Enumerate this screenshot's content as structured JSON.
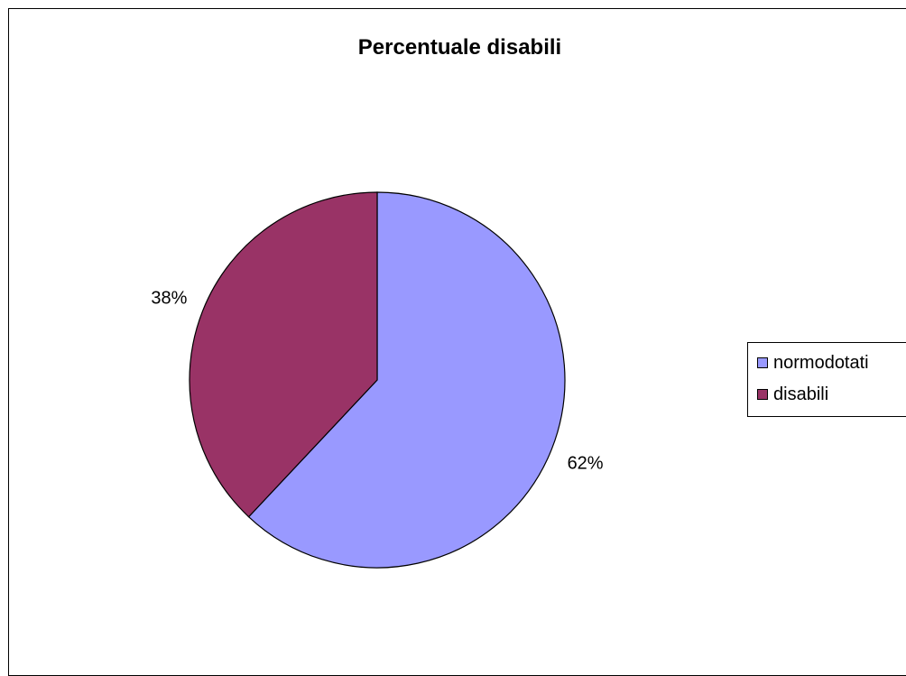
{
  "chart_data": {
    "type": "pie",
    "title": "Percentuale disabili",
    "categories": [
      "normodotati",
      "disabili"
    ],
    "values": [
      62,
      38
    ],
    "value_labels": [
      "62%",
      "38%"
    ],
    "colors": [
      "#9999ff",
      "#993366"
    ],
    "legend_position": "right",
    "start_angle": "top, clockwise"
  }
}
